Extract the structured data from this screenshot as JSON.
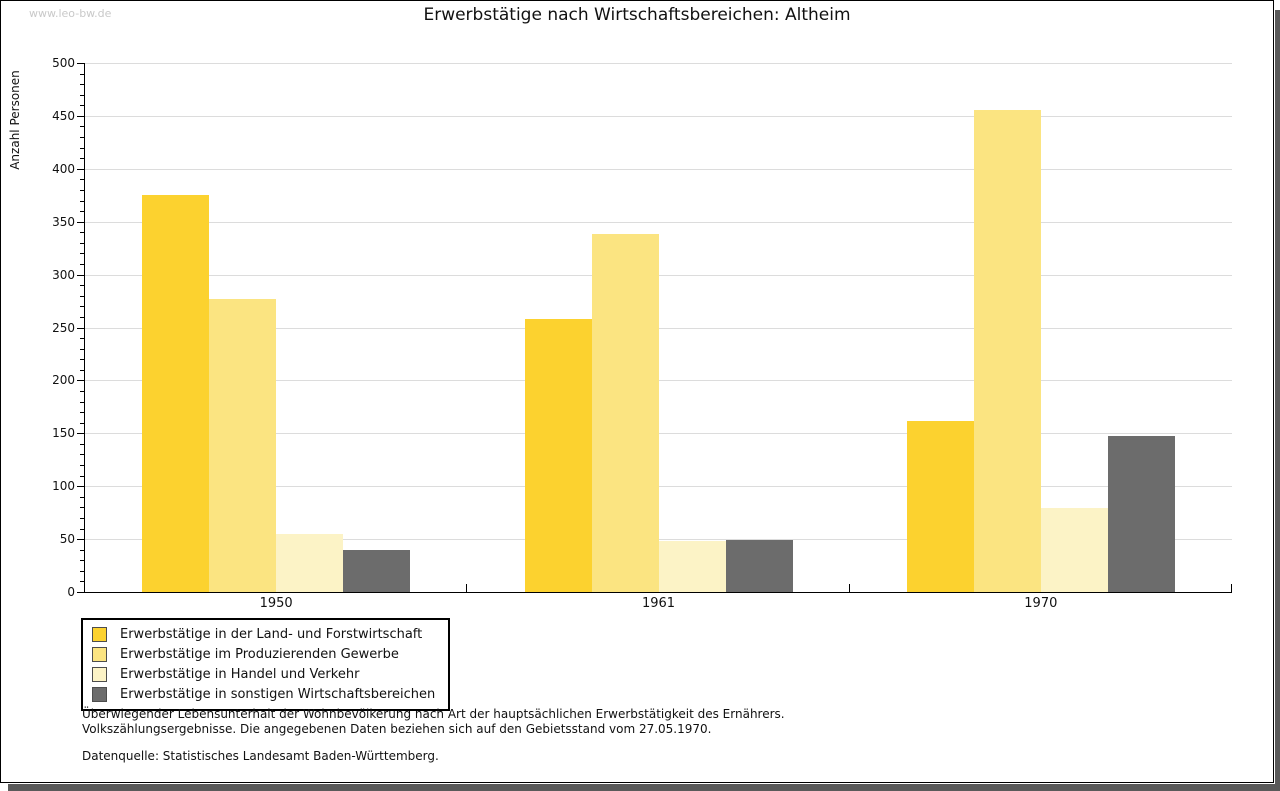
{
  "watermark": "www.leo-bw.de",
  "title": "Erwerbstätige nach Wirtschaftsbereichen: Altheim",
  "chart_data": {
    "type": "bar",
    "title": "Erwerbstätige nach Wirtschaftsbereichen: Altheim",
    "xlabel": "",
    "ylabel": "Anzahl Personen",
    "categories": [
      "1950",
      "1961",
      "1970"
    ],
    "series": [
      {
        "name": "Erwerbstätige in der Land- und Forstwirtschaft",
        "color": "#FCD22F",
        "values": [
          375,
          258,
          162
        ]
      },
      {
        "name": "Erwerbstätige im Produzierenden Gewerbe",
        "color": "#FBE481",
        "values": [
          277,
          338,
          456
        ]
      },
      {
        "name": "Erwerbstätige in Handel und Verkehr",
        "color": "#FCF3C6",
        "values": [
          55,
          48,
          79
        ]
      },
      {
        "name": "Erwerbstätige in sonstigen Wirtschaftsbereichen",
        "color": "#6C6C6C",
        "values": [
          40,
          49,
          147
        ]
      }
    ],
    "ylim": [
      0,
      500
    ],
    "ytick_step": 50,
    "yminor_step": 10,
    "grid": true,
    "legend_position": "bottom-left"
  },
  "footnotes": {
    "line1": "Überwiegender Lebensunterhalt der Wohnbevölkerung nach Art der hauptsächlichen Erwerbstätigkeit des Ernährers.",
    "line2": "Volkszählungsergebnisse. Die angegebenen Daten beziehen sich auf den Gebietsstand vom 27.05.1970.",
    "source": "Datenquelle: Statistisches Landesamt Baden-Württemberg."
  }
}
